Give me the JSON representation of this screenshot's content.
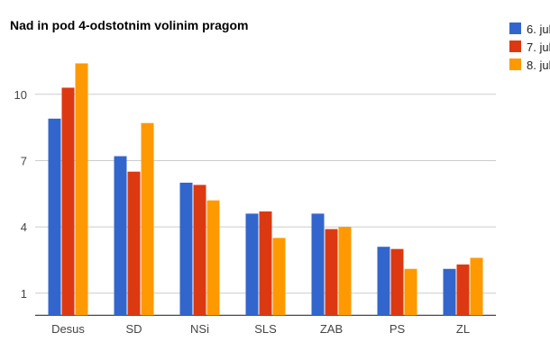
{
  "chart_data": {
    "type": "bar",
    "title": "Nad in pod 4-odstotnim volinim pragom",
    "xlabel": "",
    "ylabel": "",
    "categories": [
      "Desus",
      "SD",
      "NSi",
      "SLS",
      "ZAB",
      "PS",
      "ZL"
    ],
    "series": [
      {
        "name": "6. jul",
        "color": "#3366cc",
        "values": [
          8.9,
          7.2,
          6.0,
          4.6,
          4.6,
          3.1,
          2.1
        ]
      },
      {
        "name": "7. jul",
        "color": "#dc3912",
        "values": [
          10.3,
          6.5,
          5.9,
          4.7,
          3.9,
          3.0,
          2.3
        ]
      },
      {
        "name": "8. jul",
        "color": "#ff9900",
        "values": [
          11.4,
          8.7,
          5.2,
          3.5,
          4.0,
          2.1,
          2.6
        ]
      }
    ],
    "ylim": [
      0,
      11.4
    ],
    "yticks": [
      1,
      4,
      7,
      10
    ],
    "grid": true,
    "legend": "right"
  }
}
